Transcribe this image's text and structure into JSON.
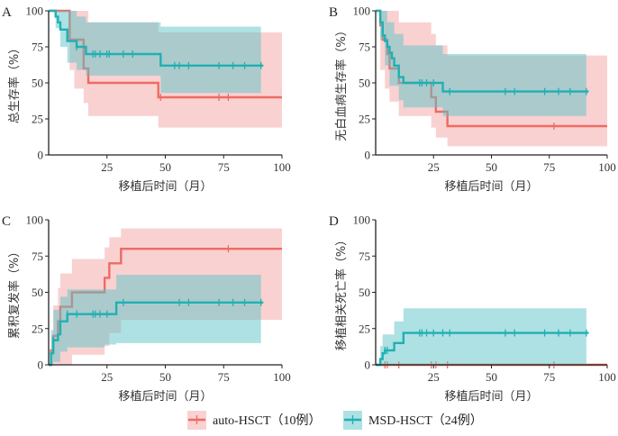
{
  "colors": {
    "auto": "#ee6b63",
    "auto_band": "#f4a3a3",
    "msd": "#1fb0b3",
    "msd_band": "#5ec3c8"
  },
  "legend": [
    {
      "key": "auto",
      "label": "auto-HSCT（10例）"
    },
    {
      "key": "msd",
      "label": "MSD-HSCT（24例）"
    }
  ],
  "chart_data": [
    {
      "panel": "A",
      "type": "line",
      "xlabel": "移植后时间（月）",
      "ylabel": "总生存率（%）",
      "xlim": [
        0,
        100
      ],
      "ylim": [
        0,
        100
      ],
      "xticks": [
        25,
        50,
        75,
        100
      ],
      "yticks": [
        0,
        25,
        50,
        75,
        100
      ],
      "series": [
        {
          "key": "auto",
          "end": 100,
          "steps": [
            [
              0,
              100
            ],
            [
              9,
              80
            ],
            [
              15,
              60
            ],
            [
              17,
              50
            ],
            [
              47,
              40
            ]
          ],
          "upper": [
            [
              0,
              100
            ],
            [
              17,
              92
            ],
            [
              47,
              85
            ]
          ],
          "lower": [
            [
              0,
              100
            ],
            [
              9,
              59
            ],
            [
              11,
              46
            ],
            [
              15,
              36
            ],
            [
              17,
              27
            ],
            [
              47,
              19
            ]
          ],
          "censor": [
            48,
            73,
            77
          ]
        },
        {
          "key": "msd",
          "end": 92,
          "steps": [
            [
              0,
              100
            ],
            [
              3,
              96
            ],
            [
              4,
              92
            ],
            [
              5,
              87
            ],
            [
              8,
              79
            ],
            [
              12,
              75
            ],
            [
              16,
              70
            ],
            [
              48,
              62
            ]
          ],
          "upper": [
            [
              0,
              100
            ],
            [
              12,
              96
            ],
            [
              16,
              92
            ],
            [
              48,
              89
            ]
          ],
          "lower": [
            [
              0,
              100
            ],
            [
              3,
              88
            ],
            [
              5,
              75
            ],
            [
              8,
              64
            ],
            [
              12,
              59
            ],
            [
              16,
              55
            ],
            [
              48,
              43
            ]
          ],
          "band_end": 91,
          "censor": [
            12,
            19,
            20,
            22,
            25,
            26,
            32,
            36,
            54,
            56,
            60,
            73,
            79,
            84,
            91
          ]
        }
      ]
    },
    {
      "panel": "B",
      "type": "line",
      "xlabel": "移植后时间（月）",
      "ylabel": "无白血病生存率（%）",
      "xlim": [
        0,
        100
      ],
      "ylim": [
        0,
        100
      ],
      "xticks": [
        25,
        50,
        75,
        100
      ],
      "yticks": [
        0,
        25,
        50,
        75,
        100
      ],
      "series": [
        {
          "key": "auto",
          "end": 100,
          "steps": [
            [
              0,
              100
            ],
            [
              2,
              90
            ],
            [
              3,
              80
            ],
            [
              5,
              70
            ],
            [
              6,
              60
            ],
            [
              10,
              50
            ],
            [
              24,
              40
            ],
            [
              26,
              30
            ],
            [
              31,
              20
            ]
          ],
          "upper": [
            [
              0,
              100
            ],
            [
              10,
              92
            ],
            [
              24,
              84
            ],
            [
              26,
              76
            ],
            [
              31,
              69
            ]
          ],
          "lower": [
            [
              0,
              100
            ],
            [
              2,
              59
            ],
            [
              4,
              46
            ],
            [
              6,
              37
            ],
            [
              10,
              27
            ],
            [
              24,
              19
            ],
            [
              26,
              12
            ],
            [
              31,
              6
            ]
          ],
          "censor": [
            77
          ]
        },
        {
          "key": "msd",
          "end": 92,
          "steps": [
            [
              0,
              100
            ],
            [
              2,
              92
            ],
            [
              3,
              83
            ],
            [
              4,
              79
            ],
            [
              5,
              75
            ],
            [
              6,
              71
            ],
            [
              7,
              67
            ],
            [
              8,
              62
            ],
            [
              10,
              54
            ],
            [
              12,
              50
            ],
            [
              29,
              44
            ]
          ],
          "upper": [
            [
              0,
              100
            ],
            [
              5,
              92
            ],
            [
              8,
              84
            ],
            [
              12,
              76
            ],
            [
              29,
              70
            ]
          ],
          "lower": [
            [
              0,
              100
            ],
            [
              2,
              80
            ],
            [
              4,
              62
            ],
            [
              6,
              48
            ],
            [
              10,
              38
            ],
            [
              12,
              33
            ],
            [
              29,
              27
            ]
          ],
          "band_end": 91,
          "censor": [
            19,
            20,
            22,
            25,
            32,
            56,
            60,
            73,
            79,
            84,
            91
          ]
        }
      ]
    },
    {
      "panel": "C",
      "type": "line",
      "xlabel": "移植后时间（月）",
      "ylabel": "累积复发率（%）",
      "xlim": [
        0,
        100
      ],
      "ylim": [
        0,
        100
      ],
      "xticks": [
        25,
        50,
        75,
        100
      ],
      "yticks": [
        0,
        25,
        50,
        75,
        100
      ],
      "series": [
        {
          "key": "auto",
          "end": 100,
          "steps": [
            [
              0,
              0
            ],
            [
              1,
              10
            ],
            [
              2,
              20
            ],
            [
              4,
              30
            ],
            [
              5,
              40
            ],
            [
              10,
              50
            ],
            [
              24,
              60
            ],
            [
              26,
              70
            ],
            [
              31,
              80
            ]
          ],
          "upper": [
            [
              0,
              0
            ],
            [
              1,
              20
            ],
            [
              2,
              41
            ],
            [
              4,
              53
            ],
            [
              5,
              63
            ],
            [
              10,
              73
            ],
            [
              24,
              81
            ],
            [
              26,
              88
            ],
            [
              31,
              94
            ]
          ],
          "lower": [
            [
              0,
              0
            ],
            [
              10,
              7
            ],
            [
              24,
              13
            ],
            [
              26,
              22
            ],
            [
              31,
              31
            ]
          ],
          "censor": [
            77
          ]
        },
        {
          "key": "msd",
          "end": 92,
          "steps": [
            [
              0,
              0
            ],
            [
              1,
              8
            ],
            [
              2,
              17
            ],
            [
              4,
              21
            ],
            [
              5,
              30
            ],
            [
              8,
              35
            ],
            [
              29,
              43
            ]
          ],
          "upper": [
            [
              0,
              0
            ],
            [
              1,
              24
            ],
            [
              2,
              38
            ],
            [
              5,
              47
            ],
            [
              8,
              52
            ],
            [
              29,
              62
            ]
          ],
          "lower": [
            [
              0,
              0
            ],
            [
              2,
              2
            ],
            [
              5,
              9
            ],
            [
              8,
              12
            ],
            [
              24,
              14
            ],
            [
              29,
              15
            ]
          ],
          "band_end": 91,
          "censor": [
            2,
            8,
            12,
            19,
            20,
            22,
            25,
            32,
            56,
            60,
            73,
            79,
            84,
            91
          ]
        }
      ]
    },
    {
      "panel": "D",
      "type": "line",
      "xlabel": "移植后时间（月）",
      "ylabel": "移植相关死亡率（%）",
      "xlim": [
        0,
        100
      ],
      "ylim": [
        0,
        100
      ],
      "xticks": [
        25,
        50,
        75,
        100
      ],
      "yticks": [
        0,
        25,
        50,
        75,
        100
      ],
      "series": [
        {
          "key": "auto",
          "end": 100,
          "steps": [
            [
              0,
              0
            ]
          ],
          "upper": [],
          "lower": [],
          "censor": [
            4,
            5,
            10,
            24,
            26,
            31,
            77
          ]
        },
        {
          "key": "msd",
          "end": 92,
          "steps": [
            [
              0,
              0
            ],
            [
              2,
              4
            ],
            [
              3,
              8
            ],
            [
              4,
              10
            ],
            [
              8,
              15
            ],
            [
              12,
              22
            ]
          ],
          "upper": [
            [
              0,
              0
            ],
            [
              2,
              13
            ],
            [
              3,
              21
            ],
            [
              8,
              30
            ],
            [
              12,
              39
            ]
          ],
          "lower": [
            [
              0,
              0
            ]
          ],
          "band_end": 91,
          "censor": [
            4,
            5,
            19,
            20,
            22,
            25,
            29,
            32,
            56,
            60,
            73,
            79,
            84,
            91
          ]
        }
      ]
    }
  ]
}
